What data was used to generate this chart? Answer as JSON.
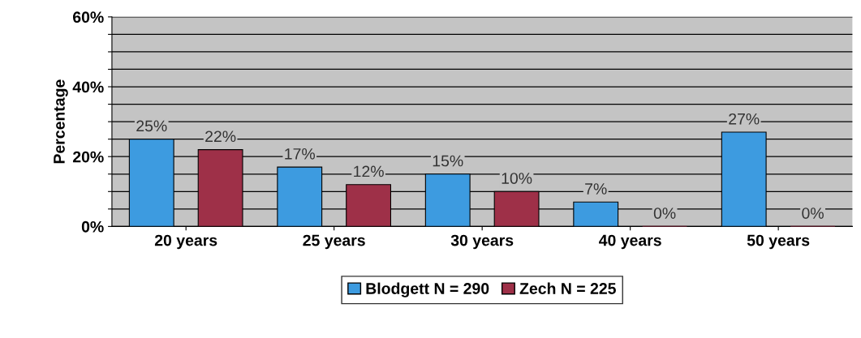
{
  "chart_data": {
    "type": "bar",
    "ylabel": "Percentage",
    "categories": [
      "20 years",
      "25 years",
      "30 years",
      "40 years",
      "50 years"
    ],
    "series": [
      {
        "name": "Blodgett N = 290",
        "color": "#3d9be0",
        "values": [
          25,
          17,
          15,
          7,
          27
        ],
        "value_labels": [
          "25%",
          "17%",
          "15%",
          "7%",
          "27%"
        ]
      },
      {
        "name": "Zech N = 225",
        "color": "#9e3048",
        "values": [
          22,
          12,
          10,
          0,
          0
        ],
        "value_labels": [
          "22%",
          "12%",
          "10%",
          "0%",
          "0%"
        ]
      }
    ],
    "ylim": [
      0,
      60
    ],
    "yticks": [
      {
        "value": 0,
        "label": "0%"
      },
      {
        "value": 5,
        "label": null
      },
      {
        "value": 10,
        "label": null
      },
      {
        "value": 15,
        "label": null
      },
      {
        "value": 20,
        "label": "20%"
      },
      {
        "value": 25,
        "label": null
      },
      {
        "value": 30,
        "label": null
      },
      {
        "value": 35,
        "label": null
      },
      {
        "value": 40,
        "label": "40%"
      },
      {
        "value": 45,
        "label": null
      },
      {
        "value": 50,
        "label": null
      },
      {
        "value": 55,
        "label": null
      },
      {
        "value": 60,
        "label": "60%"
      }
    ],
    "grid": "y",
    "legend": "bottom"
  }
}
